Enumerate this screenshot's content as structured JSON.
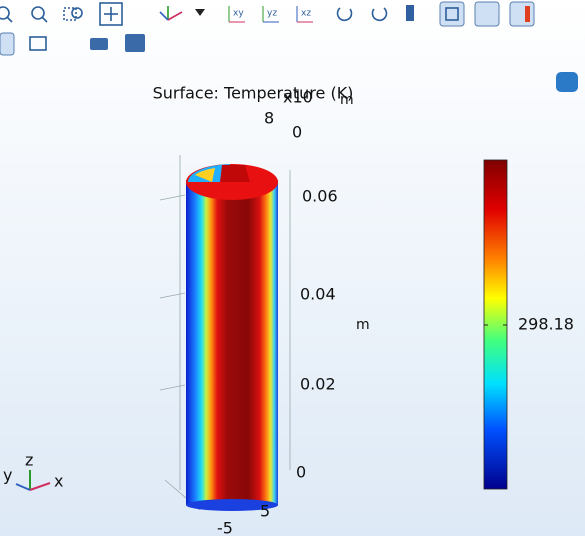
{
  "toolbar": {
    "view_labels": [
      "xy",
      "yz",
      "xz"
    ]
  },
  "plot": {
    "title": "Surface: Temperature (K)",
    "exponent": "x10",
    "top_unit": "m",
    "top_ticks": [
      "8",
      "0"
    ],
    "z_ticks": [
      "0.06",
      "0.04",
      "0.02",
      "0"
    ],
    "z_unit": "m",
    "bottom_ticks": [
      "5",
      "-5"
    ],
    "colorbar_tick": "298.18",
    "triad": {
      "x": "x",
      "y": "y",
      "z": "z"
    }
  }
}
